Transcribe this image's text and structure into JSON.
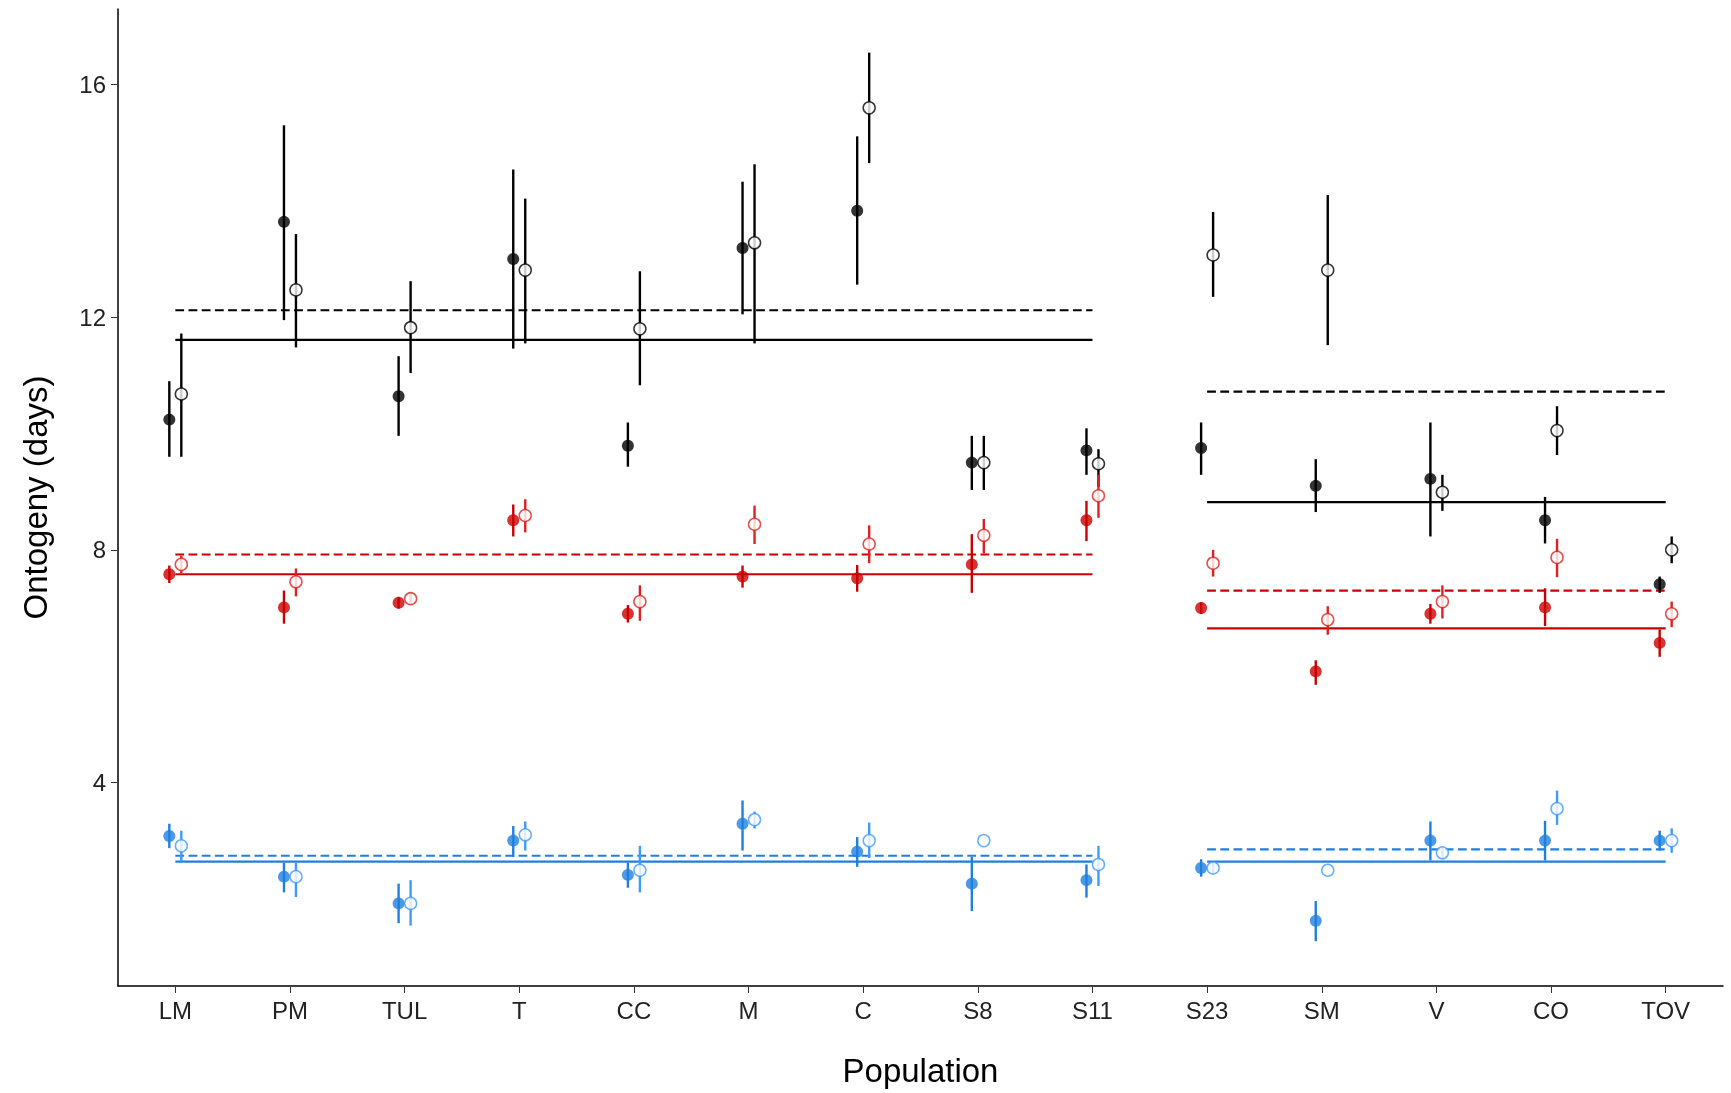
{
  "chart_data": {
    "type": "scatter",
    "xlabel": "Population",
    "ylabel": "Ontogeny (days)",
    "categories": [
      "LM",
      "PM",
      "TUL",
      "T",
      "CC",
      "M",
      "C",
      "S8",
      "S11",
      "S23",
      "SM",
      "V",
      "CO",
      "TOV"
    ],
    "ylim": [
      0.5,
      17.3
    ],
    "yticks": [
      4,
      8,
      12,
      16
    ],
    "series": [
      {
        "color": "#000000",
        "marker": "circle",
        "values": [
          10.24,
          13.64,
          10.64,
          13.0,
          9.79,
          13.19,
          13.83,
          9.5,
          9.71,
          9.75,
          9.1,
          9.22,
          8.51,
          7.41
        ],
        "errors": [
          [
            9.6,
            10.9
          ],
          [
            11.95,
            15.3
          ],
          [
            9.96,
            11.33
          ],
          [
            11.46,
            14.54
          ],
          [
            9.43,
            10.19
          ],
          [
            12.05,
            14.33
          ],
          [
            12.56,
            15.11
          ],
          [
            9.03,
            9.96
          ],
          [
            9.29,
            10.09
          ],
          [
            9.29,
            10.19
          ],
          [
            8.65,
            9.56
          ],
          [
            8.23,
            10.19
          ],
          [
            8.11,
            8.91
          ],
          [
            7.26,
            7.54
          ]
        ]
      },
      {
        "color": "#000000",
        "marker": "circle",
        "values": [
          10.68,
          12.47,
          11.82,
          12.81,
          11.8,
          13.28,
          15.6,
          9.5,
          9.48,
          13.07,
          12.81,
          8.99,
          10.05,
          8.0
        ],
        "errors": [
          [
            9.6,
            11.72
          ],
          [
            11.48,
            13.43
          ],
          [
            11.04,
            12.62
          ],
          [
            11.55,
            14.04
          ],
          [
            10.83,
            12.79
          ],
          [
            11.55,
            14.63
          ],
          [
            14.65,
            16.55
          ],
          [
            9.03,
            9.96
          ],
          [
            9.08,
            9.73
          ],
          [
            12.35,
            13.81
          ],
          [
            11.52,
            14.1
          ],
          [
            8.67,
            9.29
          ],
          [
            9.63,
            10.47
          ],
          [
            7.77,
            8.23
          ]
        ]
      },
      {
        "color": "#cc0000",
        "marker": "circle",
        "values": [
          7.58,
          7.01,
          7.09,
          8.51,
          6.9,
          7.54,
          7.51,
          7.75,
          8.51,
          7.0,
          5.91,
          6.9,
          7.01,
          6.4
        ],
        "errors": [
          [
            7.43,
            7.73
          ],
          [
            6.73,
            7.3
          ],
          [
            6.99,
            7.19
          ],
          [
            8.23,
            8.78
          ],
          [
            6.75,
            7.05
          ],
          [
            7.35,
            7.73
          ],
          [
            7.28,
            7.74
          ],
          [
            7.26,
            8.27
          ],
          [
            8.15,
            8.84
          ],
          [
            6.9,
            7.1
          ],
          [
            5.68,
            6.1
          ],
          [
            6.73,
            7.07
          ],
          [
            6.69,
            7.34
          ],
          [
            6.16,
            6.63
          ]
        ]
      },
      {
        "color": "#e02020",
        "marker": "circle",
        "values": [
          7.75,
          7.45,
          7.16,
          8.59,
          7.11,
          8.44,
          8.1,
          8.25,
          8.93,
          7.77,
          6.8,
          7.11,
          7.87,
          6.9
        ],
        "errors": [
          [
            7.6,
            7.9
          ],
          [
            7.2,
            7.68
          ],
          [
            7.06,
            7.26
          ],
          [
            8.3,
            8.87
          ],
          [
            6.78,
            7.39
          ],
          [
            8.1,
            8.76
          ],
          [
            7.77,
            8.42
          ],
          [
            7.94,
            8.53
          ],
          [
            8.55,
            9.29
          ],
          [
            7.54,
            8.0
          ],
          [
            6.54,
            7.03
          ],
          [
            6.82,
            7.39
          ],
          [
            7.53,
            8.19
          ],
          [
            6.67,
            7.11
          ]
        ]
      },
      {
        "color": "#1f7fe0",
        "marker": "circle",
        "values": [
          3.08,
          2.38,
          1.92,
          3.0,
          2.41,
          3.29,
          2.81,
          2.26,
          2.32,
          2.53,
          1.62,
          3.0,
          3.0,
          3.0
        ],
        "errors": [
          [
            2.87,
            3.29
          ],
          [
            2.11,
            2.62
          ],
          [
            1.58,
            2.26
          ],
          [
            2.72,
            3.25
          ],
          [
            2.19,
            2.62
          ],
          [
            2.83,
            3.69
          ],
          [
            2.55,
            3.06
          ],
          [
            1.79,
            2.72
          ],
          [
            2.02,
            2.59
          ],
          [
            2.38,
            2.68
          ],
          [
            1.27,
            1.96
          ],
          [
            2.66,
            3.33
          ],
          [
            2.66,
            3.34
          ],
          [
            2.83,
            3.17
          ]
        ]
      },
      {
        "color": "#3d9bff",
        "marker": "circle",
        "values": [
          2.91,
          2.38,
          1.92,
          3.1,
          2.49,
          3.36,
          3.0,
          3.0,
          2.59,
          2.53,
          2.49,
          2.79,
          3.55,
          3.0
        ],
        "errors": [
          [
            2.64,
            3.17
          ],
          [
            2.03,
            2.62
          ],
          [
            1.54,
            2.32
          ],
          [
            2.83,
            3.33
          ],
          [
            2.11,
            2.91
          ],
          [
            3.21,
            3.5
          ],
          [
            2.7,
            3.31
          ],
          null,
          [
            2.22,
            2.91
          ],
          [
            2.43,
            2.63
          ],
          null,
          [
            2.69,
            2.89
          ],
          [
            3.27,
            3.86
          ],
          [
            2.79,
            3.21
          ]
        ]
      },
      {
        "type": "line",
        "color": "#000000",
        "line_style": "solid",
        "marker": "none",
        "x": [
          "LM",
          "S11"
        ],
        "values": [
          11.61,
          11.61
        ]
      },
      {
        "type": "line",
        "color": "#000000",
        "line_style": "solid",
        "marker": "none",
        "x": [
          "S23",
          "TOV"
        ],
        "values": [
          8.82,
          8.82
        ]
      },
      {
        "type": "line",
        "color": "#000000",
        "line_style": "dashed",
        "marker": "none",
        "x": [
          "LM",
          "S11"
        ],
        "values": [
          12.12,
          12.12
        ]
      },
      {
        "type": "line",
        "color": "#000000",
        "line_style": "dashed",
        "marker": "none",
        "x": [
          "S23",
          "TOV"
        ],
        "values": [
          10.72,
          10.72
        ]
      },
      {
        "type": "line",
        "color": "#cc0000",
        "line_style": "solid",
        "marker": "none",
        "x": [
          "LM",
          "S11"
        ],
        "values": [
          7.58,
          7.58
        ]
      },
      {
        "type": "line",
        "color": "#cc0000",
        "line_style": "solid",
        "marker": "none",
        "x": [
          "S23",
          "TOV"
        ],
        "values": [
          6.65,
          6.65
        ]
      },
      {
        "type": "line",
        "color": "#cc0000",
        "line_style": "dashed",
        "marker": "none",
        "x": [
          "LM",
          "S11"
        ],
        "values": [
          7.92,
          7.92
        ]
      },
      {
        "type": "line",
        "color": "#cc0000",
        "line_style": "dashed",
        "marker": "none",
        "x": [
          "S23",
          "TOV"
        ],
        "values": [
          7.3,
          7.3
        ]
      },
      {
        "type": "line",
        "color": "#1f7fe0",
        "line_style": "solid",
        "marker": "none",
        "x": [
          "LM",
          "S11"
        ],
        "values": [
          2.64,
          2.64
        ]
      },
      {
        "type": "line",
        "color": "#1f7fe0",
        "line_style": "solid",
        "marker": "none",
        "x": [
          "S23",
          "TOV"
        ],
        "values": [
          2.64,
          2.64
        ]
      },
      {
        "type": "line",
        "color": "#1f7fe0",
        "line_style": "dashed",
        "marker": "none",
        "x": [
          "LM",
          "S11"
        ],
        "values": [
          2.74,
          2.74
        ]
      },
      {
        "type": "line",
        "color": "#1f7fe0",
        "line_style": "dashed",
        "marker": "none",
        "x": [
          "S23",
          "TOV"
        ],
        "values": [
          2.85,
          2.85
        ]
      }
    ]
  }
}
